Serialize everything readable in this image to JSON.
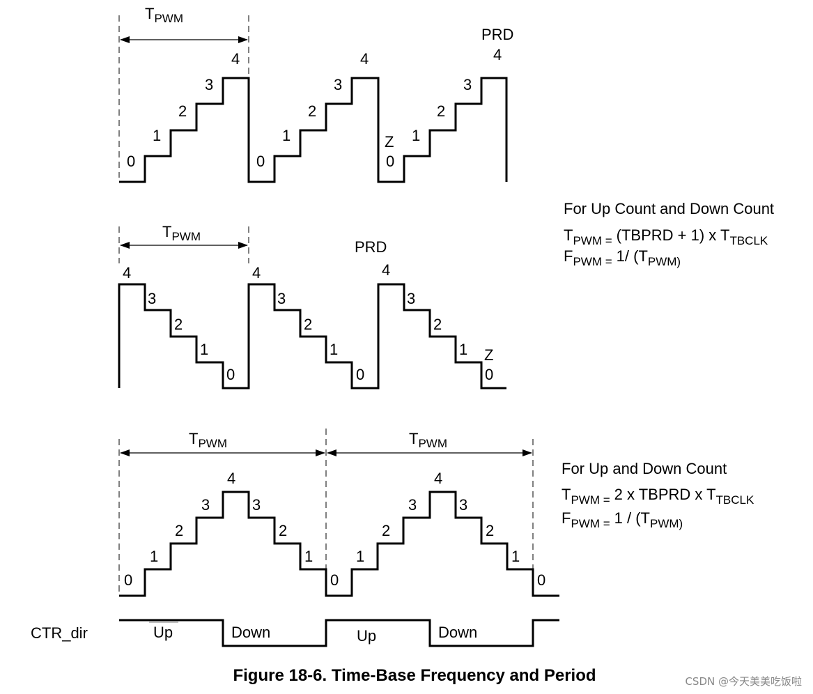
{
  "waveforms": {
    "up_count": {
      "tpwm": {
        "base": "T",
        "sub": "PWM"
      },
      "prd_label": "PRD",
      "zero_label": "Z",
      "cycles": [
        {
          "steps": [
            "0",
            "1",
            "2",
            "3",
            "4"
          ]
        },
        {
          "steps": [
            "0",
            "1",
            "2",
            "3",
            "4"
          ]
        },
        {
          "steps": [
            "0",
            "1",
            "2",
            "3",
            "4"
          ]
        }
      ]
    },
    "down_count": {
      "tpwm": {
        "base": "T",
        "sub": "PWM"
      },
      "prd_label": "PRD",
      "zero_label": "Z",
      "cycles": [
        {
          "steps": [
            "4",
            "3",
            "2",
            "1",
            "0"
          ]
        },
        {
          "steps": [
            "4",
            "3",
            "2",
            "1",
            "0"
          ]
        },
        {
          "steps": [
            "4",
            "3",
            "2",
            "1",
            "0"
          ]
        }
      ]
    },
    "up_down_count": {
      "tpwm": {
        "base": "T",
        "sub": "PWM"
      },
      "cycles": [
        {
          "steps": [
            "0",
            "1",
            "2",
            "3",
            "4",
            "3",
            "2",
            "1",
            "0"
          ]
        },
        {
          "steps": [
            "0",
            "1",
            "2",
            "3",
            "4",
            "3",
            "2",
            "1",
            "0"
          ]
        }
      ]
    }
  },
  "formulas": {
    "up_or_down": {
      "heading": "For Up Count and Down Count",
      "period": {
        "lhs_base": "T",
        "lhs_sub": "PWM =",
        "rhs": "(TBPRD + 1) x T",
        "rhs_sub": "TBCLK"
      },
      "frequency": {
        "lhs_base": "F",
        "lhs_sub": "PWM =",
        "rhs": "1/ (T",
        "rhs_sub": "PWM)"
      }
    },
    "up_and_down": {
      "heading": "For Up and Down Count",
      "period": {
        "lhs_base": "T",
        "lhs_sub": "PWM =",
        "rhs": "2 x TBPRD x T",
        "rhs_sub": "TBCLK"
      },
      "frequency": {
        "lhs_base": "F",
        "lhs_sub": "PWM =",
        "rhs": "1 / (T",
        "rhs_sub": "PWM)"
      }
    }
  },
  "ctr_dir": {
    "label": "CTR_dir",
    "phases": [
      "Up",
      "Down",
      "Up",
      "Down"
    ]
  },
  "caption": "Figure 18-6. Time-Base Frequency and Period",
  "watermark": "CSDN @今天美美吃饭啦"
}
